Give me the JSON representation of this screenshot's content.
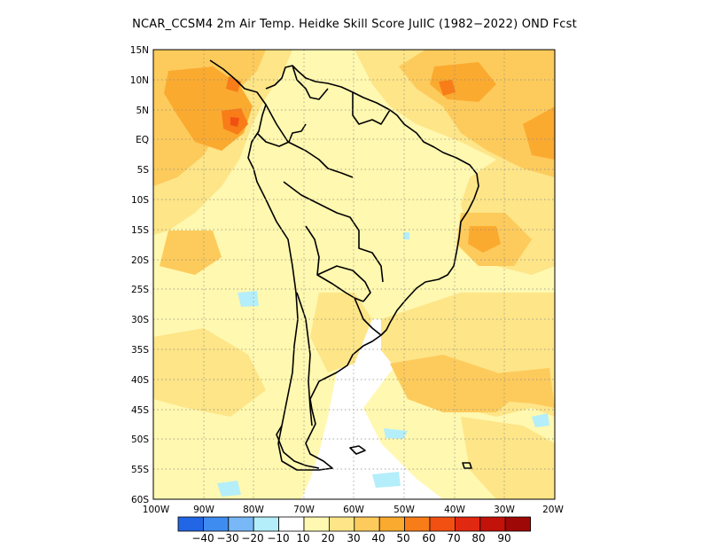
{
  "title": "NCAR_CCSM4  2m Air Temp. Heidke Skill Score JulIC (1982−2022) OND Fcst",
  "axes": {
    "lat_labels": [
      "15N",
      "10N",
      "5N",
      "EQ",
      "5S",
      "10S",
      "15S",
      "20S",
      "25S",
      "30S",
      "35S",
      "40S",
      "45S",
      "50S",
      "55S",
      "60S"
    ],
    "lon_labels": [
      "100W",
      "90W",
      "80W",
      "70W",
      "60W",
      "50W",
      "40W",
      "30W",
      "20W"
    ],
    "lat_range": [
      -60,
      15
    ],
    "lon_range": [
      -100,
      -20
    ]
  },
  "colorbar": {
    "labels": [
      "−40",
      "−30",
      "−20",
      "−10",
      "10",
      "20",
      "30",
      "40",
      "50",
      "60",
      "70",
      "80",
      "90"
    ],
    "colors": [
      "#2266e6",
      "#3f8cf0",
      "#78b8f6",
      "#b4eefa",
      "#ffffff",
      "#fff8b0",
      "#fde588",
      "#fdcb5c",
      "#fbaa30",
      "#f87c18",
      "#f25012",
      "#e12810",
      "#c2120a",
      "#9e0806"
    ]
  },
  "map": {
    "grid": true,
    "projection": "lat-lon",
    "region": "South America"
  }
}
